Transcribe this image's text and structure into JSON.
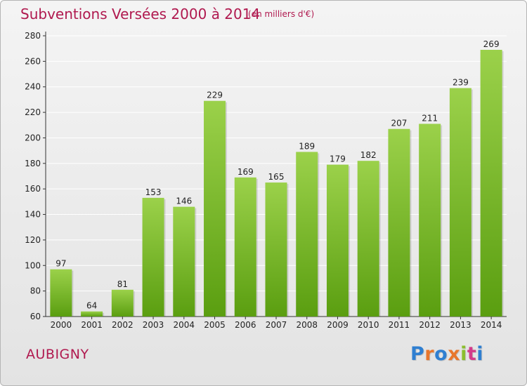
{
  "header": {
    "title": "Subventions Versées 2000 à 2014",
    "subtitle": "(en milliers d'€)"
  },
  "footer": {
    "commune": "AUBIGNY",
    "logo_text": "Proxiti",
    "logo_colors": [
      "#2f7fd1",
      "#e8762c",
      "#2f7fd1",
      "#e8762c",
      "#8bbf2e",
      "#d33b8a",
      "#2f7fd1"
    ]
  },
  "colors": {
    "title": "#b0194f",
    "bar_top": "#9bd14a",
    "bar_bottom": "#5a9e10",
    "grid": "#ffffff",
    "axis": "#333333"
  },
  "chart_data": {
    "type": "bar",
    "title": "Subventions Versées 2000 à 2014",
    "subtitle": "(en milliers d'€)",
    "xlabel": "",
    "ylabel": "",
    "categories": [
      "2000",
      "2001",
      "2002",
      "2003",
      "2004",
      "2005",
      "2006",
      "2007",
      "2008",
      "2009",
      "2010",
      "2011",
      "2012",
      "2013",
      "2014"
    ],
    "values": [
      97,
      64,
      81,
      153,
      146,
      229,
      169,
      165,
      189,
      179,
      182,
      207,
      211,
      239,
      269
    ],
    "ylim": [
      60,
      280
    ],
    "yticks": [
      60,
      80,
      100,
      120,
      140,
      160,
      180,
      200,
      220,
      240,
      260,
      280
    ],
    "grid": true,
    "data_labels": true
  }
}
